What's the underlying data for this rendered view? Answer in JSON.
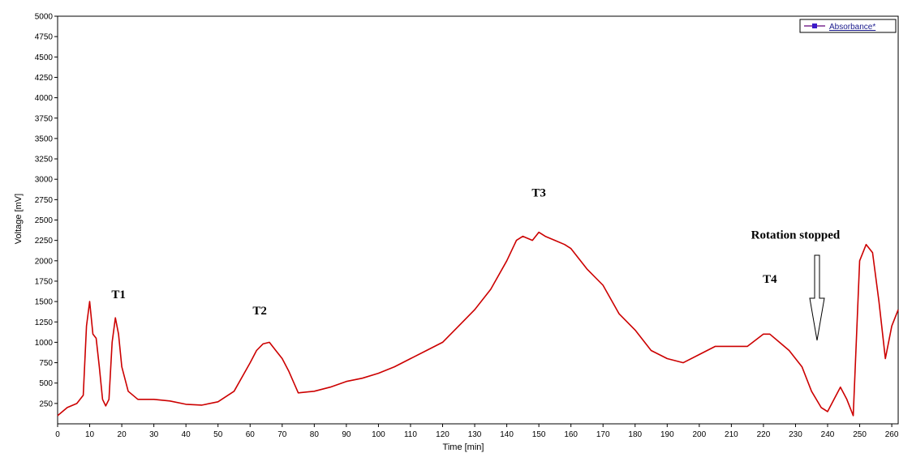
{
  "chart_data": {
    "type": "line",
    "title": "",
    "xlabel": "Time [min]",
    "ylabel": "Voltage [mV]",
    "xlim": [
      0,
      262
    ],
    "ylim": [
      0,
      5000
    ],
    "x_ticks": [
      0,
      10,
      20,
      30,
      40,
      50,
      60,
      70,
      80,
      90,
      100,
      110,
      120,
      130,
      140,
      150,
      160,
      170,
      180,
      190,
      200,
      210,
      220,
      230,
      240,
      250,
      260
    ],
    "y_ticks": [
      250,
      500,
      750,
      1000,
      1250,
      1500,
      1750,
      2000,
      2250,
      2500,
      2750,
      3000,
      3250,
      3500,
      3750,
      4000,
      4250,
      4500,
      4750,
      5000
    ],
    "grid": false,
    "legend": {
      "position": "top-right",
      "entries": [
        "Absorbance*"
      ]
    },
    "series": [
      {
        "name": "Absorbance*",
        "color": "#cc0000",
        "x": [
          0,
          3,
          6,
          8,
          9,
          10,
          11,
          12,
          13,
          14,
          15,
          16,
          17,
          18,
          19,
          20,
          22,
          25,
          30,
          35,
          40,
          45,
          50,
          55,
          60,
          62,
          64,
          66,
          68,
          70,
          72,
          75,
          80,
          85,
          90,
          95,
          100,
          105,
          110,
          115,
          120,
          125,
          130,
          135,
          140,
          143,
          145,
          148,
          150,
          152,
          155,
          158,
          160,
          165,
          170,
          175,
          180,
          185,
          190,
          195,
          200,
          205,
          210,
          215,
          220,
          222,
          225,
          228,
          232,
          235,
          238,
          240,
          242,
          244,
          246,
          248,
          250,
          252,
          254,
          256,
          258,
          260,
          262
        ],
        "y": [
          100,
          200,
          250,
          350,
          1200,
          1500,
          1100,
          1050,
          700,
          300,
          220,
          300,
          1000,
          1300,
          1100,
          700,
          400,
          300,
          300,
          280,
          240,
          230,
          270,
          400,
          750,
          900,
          980,
          1000,
          900,
          800,
          650,
          380,
          400,
          450,
          520,
          560,
          620,
          700,
          800,
          900,
          1000,
          1200,
          1400,
          1650,
          2000,
          2250,
          2300,
          2250,
          2350,
          2300,
          2250,
          2200,
          2150,
          1900,
          1700,
          1350,
          1150,
          900,
          800,
          750,
          850,
          950,
          950,
          950,
          1100,
          1100,
          1000,
          900,
          700,
          400,
          200,
          150,
          300,
          450,
          300,
          100,
          2000,
          2200,
          2100,
          1500,
          800,
          1200,
          1400
        ]
      }
    ],
    "annotations": [
      {
        "label": "T1",
        "x": 19,
        "y": 1540
      },
      {
        "label": "T2",
        "x": 63,
        "y": 1340
      },
      {
        "label": "T3",
        "x": 150,
        "y": 2790
      },
      {
        "label": "T4",
        "x": 222,
        "y": 1730
      },
      {
        "label": "Rotation stopped",
        "x": 230,
        "y": 2270
      }
    ]
  }
}
